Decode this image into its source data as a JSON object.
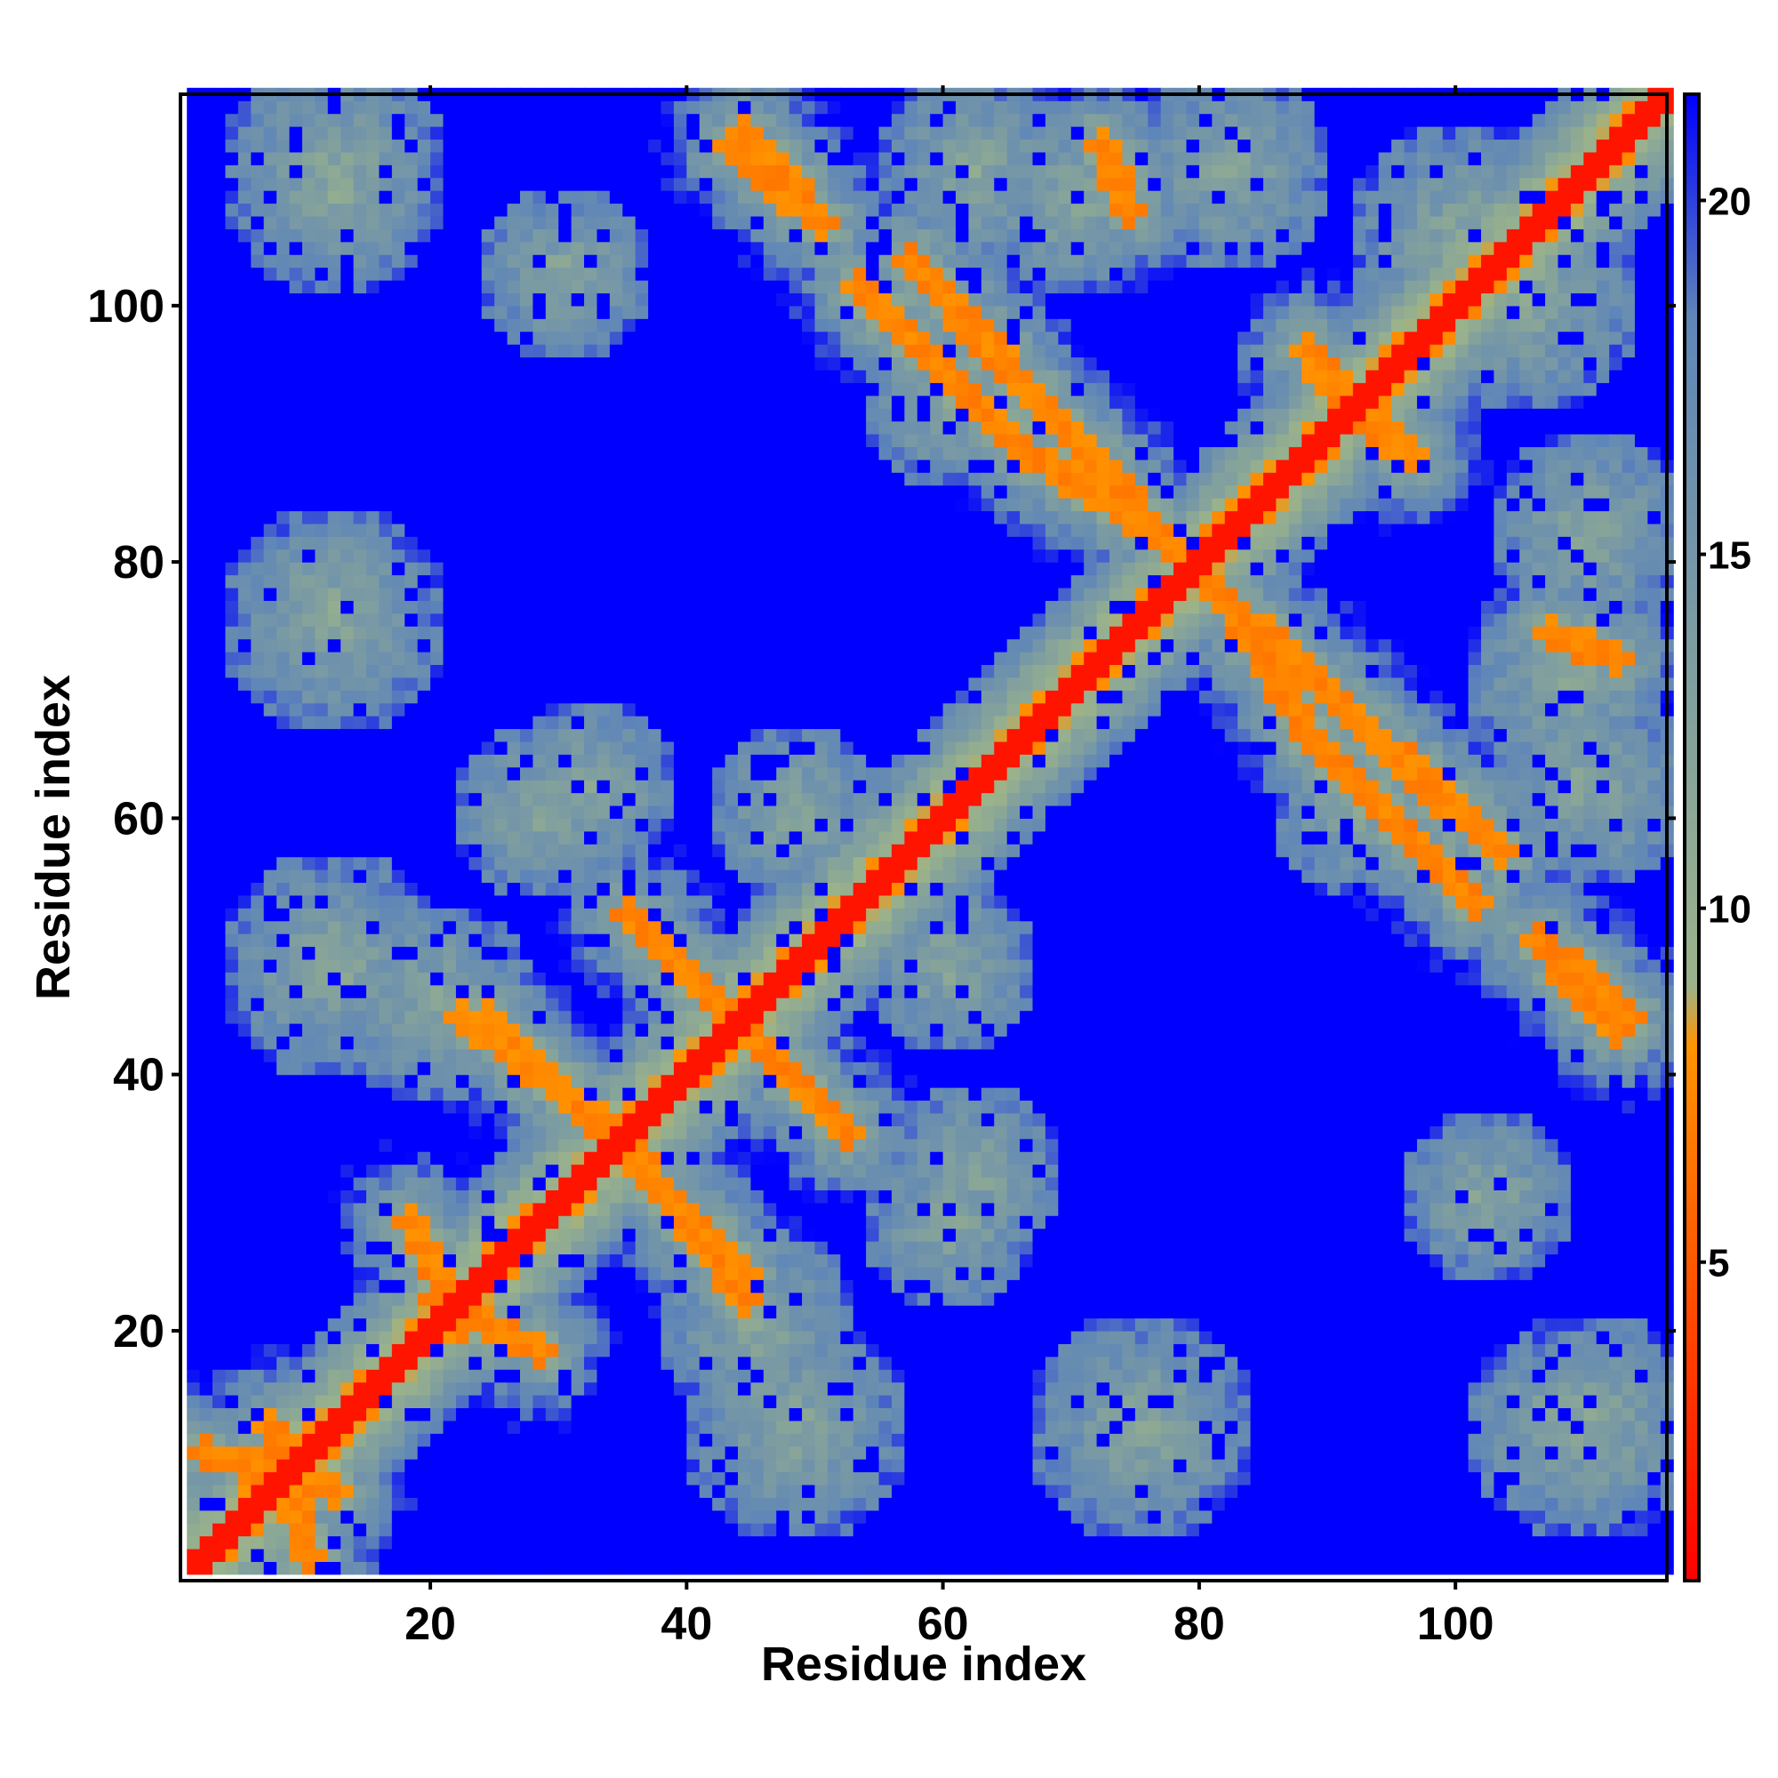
{
  "chart_data": {
    "type": "heatmap",
    "title": "",
    "xlabel": "Residue index",
    "ylabel": "Residue index",
    "n_residues": 116,
    "xlim": [
      1,
      116
    ],
    "ylim": [
      1,
      116
    ],
    "x_ticks": [
      20,
      40,
      60,
      80,
      100
    ],
    "y_ticks": [
      20,
      40,
      60,
      80,
      100
    ],
    "colorbar": {
      "ticks": [
        5,
        10,
        15,
        20
      ],
      "range": [
        0.5,
        21.5
      ],
      "colors": [
        "#ff0000",
        "#ff9400",
        "#9bb38a",
        "#5f86b8",
        "#0000ff"
      ],
      "stops": [
        0,
        0.36,
        0.4,
        0.85,
        1.0
      ],
      "placement": "right"
    },
    "diagonal_band": {
      "width": 3.0,
      "value": 1.5
    },
    "background_value": 21.5,
    "features": [
      {
        "kind": "strand",
        "from": [
          22,
          44
        ],
        "to": [
          34,
          35
        ],
        "halfwidth": 3.5
      },
      {
        "kind": "strand",
        "from": [
          35,
          52
        ],
        "to": [
          45,
          42
        ],
        "halfwidth": 3.5
      },
      {
        "kind": "strand",
        "from": [
          34,
          34
        ],
        "to": [
          44,
          24
        ],
        "halfwidth": 3.5
      },
      {
        "kind": "strand",
        "from": [
          44,
          43
        ],
        "to": [
          52,
          35
        ],
        "halfwidth": 3.5
      },
      {
        "kind": "strand",
        "from": [
          44,
          113
        ],
        "to": [
          50,
          106
        ],
        "halfwidth": 3.5
      },
      {
        "kind": "strand",
        "from": [
          53,
          101
        ],
        "to": [
          66,
          88
        ],
        "halfwidth": 3.5
      },
      {
        "kind": "strand",
        "from": [
          66,
          88
        ],
        "to": [
          76,
          82
        ],
        "halfwidth": 3.5
      },
      {
        "kind": "strand",
        "from": [
          80,
          78
        ],
        "to": [
          103,
          57
        ],
        "halfwidth": 3.5
      },
      {
        "kind": "strand",
        "from": [
          88,
          96
        ],
        "to": [
          94,
          89
        ],
        "halfwidth": 3.0
      },
      {
        "kind": "strand",
        "from": [
          106,
          50
        ],
        "to": [
          112,
          43
        ],
        "halfwidth": 3.0
      },
      {
        "kind": "strand",
        "from": [
          72,
          112
        ],
        "to": [
          74,
          107
        ],
        "halfwidth": 2.5
      },
      {
        "kind": "strand",
        "from": [
          7,
          12
        ],
        "to": [
          10,
          2
        ],
        "halfwidth": 2.0
      },
      {
        "kind": "strand",
        "from": [
          20,
          22
        ],
        "to": [
          28,
          18
        ],
        "halfwidth": 2.5
      },
      {
        "kind": "blob",
        "center": [
          12,
          110
        ],
        "radius": 9
      },
      {
        "kind": "blob",
        "center": [
          12,
          75
        ],
        "radius": 9
      },
      {
        "kind": "blob",
        "center": [
          12,
          48
        ],
        "radius": 9
      },
      {
        "kind": "blob",
        "center": [
          28,
          60
        ],
        "radius": 7
      },
      {
        "kind": "blob",
        "center": [
          45,
          20
        ],
        "radius": 8
      },
      {
        "kind": "blob",
        "center": [
          48,
          60
        ],
        "radius": 7
      },
      {
        "kind": "blob",
        "center": [
          62,
          110
        ],
        "radius": 8
      },
      {
        "kind": "blob",
        "center": [
          62,
          32
        ],
        "radius": 7
      },
      {
        "kind": "blob",
        "center": [
          76,
          12
        ],
        "radius": 8
      },
      {
        "kind": "blob",
        "center": [
          82,
          110
        ],
        "radius": 8
      },
      {
        "kind": "blob",
        "center": [
          92,
          60
        ],
        "radius": 7
      },
      {
        "kind": "blob",
        "center": [
          102,
          30
        ],
        "radius": 7
      },
      {
        "kind": "blob",
        "center": [
          108,
          12
        ],
        "radius": 8
      },
      {
        "kind": "blob",
        "center": [
          108,
          70
        ],
        "radius": 8
      },
      {
        "kind": "blob",
        "center": [
          105,
          100
        ],
        "radius": 9
      }
    ]
  }
}
